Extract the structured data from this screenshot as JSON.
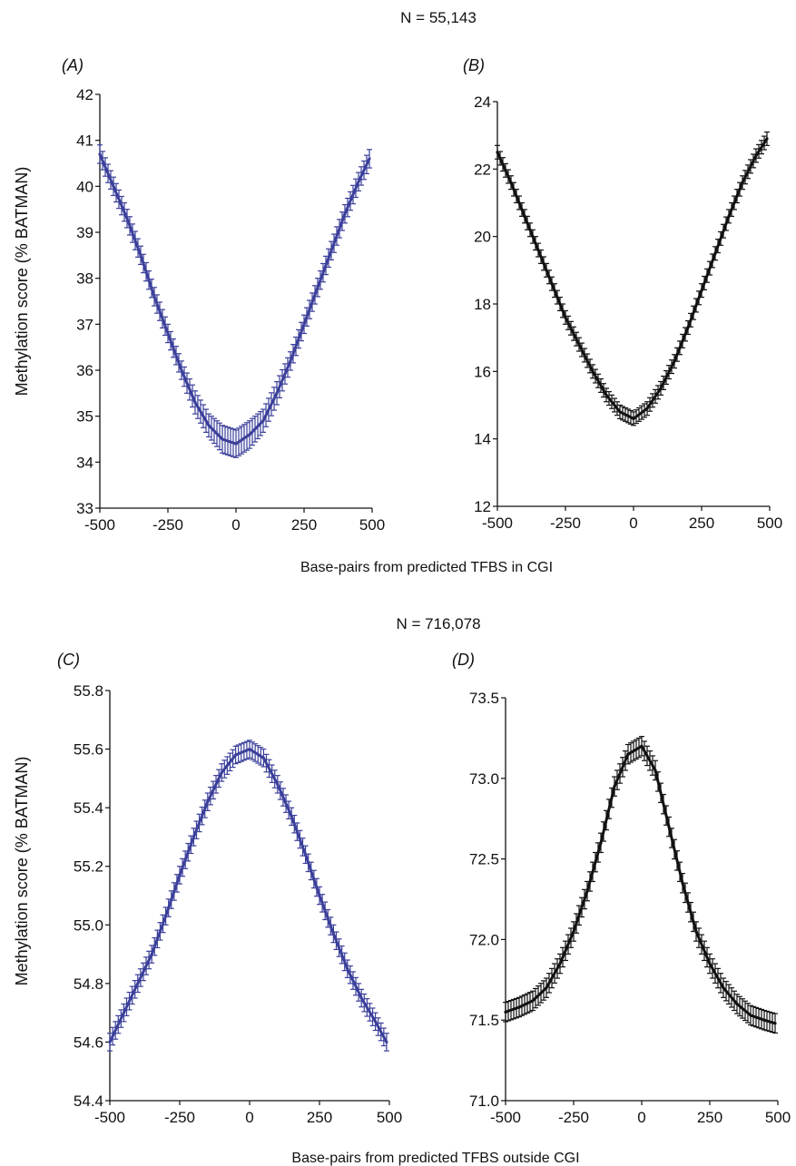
{
  "figure": {
    "top_title": "N = 55,143",
    "bottom_title": "N = 716,078",
    "top_xlabel": "Base-pairs from predicted TFBS in CGI",
    "bottom_xlabel": "Base-pairs from predicted TFBS outside CGI",
    "ylabel": "Methylation score (% BATMAN)"
  },
  "chart_data": [
    {
      "type": "line",
      "panel_label": "(A)",
      "color": "#3b3f9a",
      "xlim": [
        -500,
        500
      ],
      "ylim": [
        33,
        42
      ],
      "xticks": [
        -500,
        -250,
        0,
        250,
        500
      ],
      "xtick_labels": [
        "-500",
        "-250",
        "0",
        "250",
        "500"
      ],
      "yticks": [
        33,
        34,
        35,
        36,
        37,
        38,
        39,
        40,
        41,
        42
      ],
      "ytick_labels": [
        "33",
        "34",
        "35",
        "36",
        "37",
        "38",
        "39",
        "40",
        "41",
        "42"
      ],
      "series": [
        {
          "x": [
            -500,
            -450,
            -400,
            -350,
            -300,
            -250,
            -200,
            -150,
            -100,
            -50,
            0,
            50,
            100,
            150,
            200,
            250,
            300,
            350,
            400,
            450,
            490
          ],
          "y": [
            40.7,
            40.0,
            39.3,
            38.5,
            37.6,
            36.8,
            36.0,
            35.3,
            34.8,
            34.5,
            34.4,
            34.6,
            34.9,
            35.5,
            36.2,
            37.0,
            37.8,
            38.6,
            39.4,
            40.1,
            40.6
          ],
          "err": [
            0.2,
            0.2,
            0.2,
            0.2,
            0.2,
            0.2,
            0.2,
            0.25,
            0.25,
            0.3,
            0.3,
            0.3,
            0.25,
            0.25,
            0.2,
            0.2,
            0.2,
            0.2,
            0.2,
            0.2,
            0.2
          ]
        }
      ]
    },
    {
      "type": "line",
      "panel_label": "(B)",
      "color": "#111111",
      "xlim": [
        -500,
        500
      ],
      "ylim": [
        12,
        24
      ],
      "xticks": [
        -500,
        -250,
        0,
        250,
        500
      ],
      "xtick_labels": [
        "-500",
        "-250",
        "0",
        "250",
        "500"
      ],
      "yticks": [
        12,
        14,
        16,
        18,
        20,
        22,
        24
      ],
      "ytick_labels": [
        "12",
        "14",
        "16",
        "18",
        "20",
        "22",
        "24"
      ],
      "series": [
        {
          "x": [
            -500,
            -450,
            -400,
            -350,
            -300,
            -250,
            -200,
            -150,
            -100,
            -50,
            0,
            50,
            100,
            150,
            200,
            250,
            300,
            350,
            400,
            450,
            490
          ],
          "y": [
            22.5,
            21.6,
            20.6,
            19.6,
            18.6,
            17.6,
            16.8,
            16.0,
            15.3,
            14.8,
            14.6,
            14.9,
            15.5,
            16.3,
            17.3,
            18.4,
            19.5,
            20.6,
            21.6,
            22.4,
            22.9
          ],
          "err": [
            0.2,
            0.2,
            0.2,
            0.2,
            0.2,
            0.2,
            0.2,
            0.2,
            0.2,
            0.2,
            0.2,
            0.2,
            0.2,
            0.2,
            0.2,
            0.2,
            0.2,
            0.2,
            0.2,
            0.2,
            0.2
          ]
        }
      ]
    },
    {
      "type": "line",
      "panel_label": "(C)",
      "color": "#3b3f9a",
      "xlim": [
        -500,
        500
      ],
      "ylim": [
        54.4,
        55.8
      ],
      "xticks": [
        -500,
        -250,
        0,
        250,
        500
      ],
      "xtick_labels": [
        "-500",
        "-250",
        "0",
        "250",
        "500"
      ],
      "yticks": [
        54.4,
        54.6,
        54.8,
        55.0,
        55.2,
        55.4,
        55.6,
        55.8
      ],
      "ytick_labels": [
        "54.4",
        "54.6",
        "54.8",
        "55.0",
        "55.2",
        "55.4",
        "55.6",
        "55.8"
      ],
      "series": [
        {
          "x": [
            -500,
            -450,
            -400,
            -350,
            -300,
            -250,
            -200,
            -150,
            -100,
            -50,
            0,
            50,
            100,
            150,
            200,
            250,
            300,
            350,
            400,
            450,
            490
          ],
          "y": [
            54.6,
            54.7,
            54.8,
            54.9,
            55.03,
            55.17,
            55.3,
            55.42,
            55.52,
            55.58,
            55.6,
            55.57,
            55.48,
            55.37,
            55.24,
            55.1,
            54.97,
            54.85,
            54.75,
            54.67,
            54.6
          ],
          "err": [
            0.03,
            0.03,
            0.03,
            0.03,
            0.03,
            0.03,
            0.03,
            0.03,
            0.03,
            0.03,
            0.03,
            0.03,
            0.03,
            0.03,
            0.03,
            0.03,
            0.03,
            0.03,
            0.03,
            0.03,
            0.03
          ]
        }
      ]
    },
    {
      "type": "line",
      "panel_label": "(D)",
      "color": "#111111",
      "xlim": [
        -500,
        500
      ],
      "ylim": [
        71.0,
        73.5
      ],
      "xticks": [
        -500,
        -250,
        0,
        250,
        500
      ],
      "xtick_labels": [
        "-500",
        "-250",
        "0",
        "250",
        "500"
      ],
      "yticks": [
        71.0,
        71.5,
        72.0,
        72.5,
        73.0,
        73.5
      ],
      "ytick_labels": [
        "71.0",
        "71.5",
        "72.0",
        "72.5",
        "73.0",
        "73.5"
      ],
      "series": [
        {
          "x": [
            -500,
            -450,
            -400,
            -350,
            -300,
            -250,
            -200,
            -150,
            -100,
            -50,
            0,
            50,
            100,
            150,
            200,
            250,
            300,
            350,
            400,
            450,
            490
          ],
          "y": [
            71.55,
            71.58,
            71.62,
            71.7,
            71.85,
            72.05,
            72.3,
            72.6,
            72.95,
            73.15,
            73.2,
            73.05,
            72.7,
            72.35,
            72.05,
            71.85,
            71.7,
            71.6,
            71.53,
            71.5,
            71.48
          ],
          "err": [
            0.06,
            0.06,
            0.06,
            0.06,
            0.06,
            0.06,
            0.06,
            0.06,
            0.06,
            0.06,
            0.06,
            0.06,
            0.06,
            0.06,
            0.06,
            0.06,
            0.06,
            0.06,
            0.06,
            0.06,
            0.06
          ]
        }
      ]
    }
  ]
}
